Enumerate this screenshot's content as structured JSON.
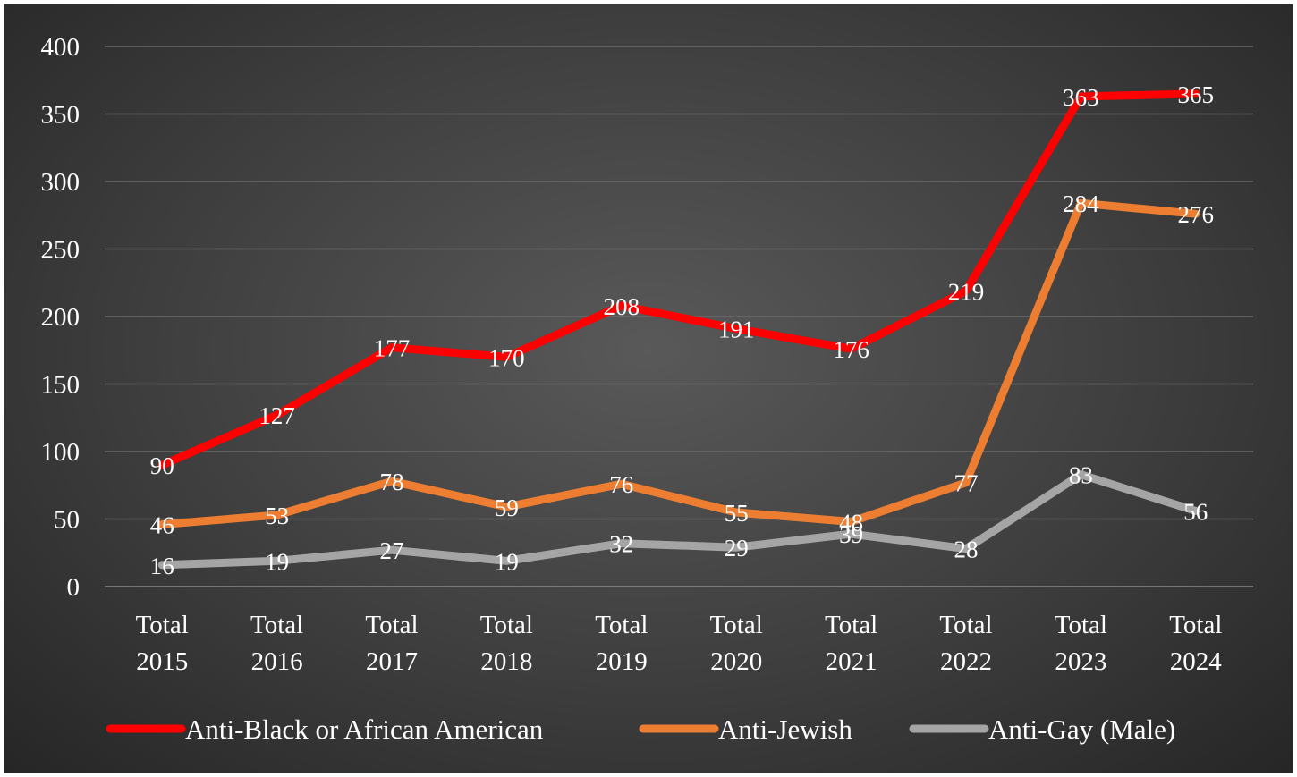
{
  "chart_data": {
    "type": "line",
    "title": "",
    "xlabel": "",
    "ylabel": "",
    "ylim": [
      0,
      400
    ],
    "yticks": [
      0,
      50,
      100,
      150,
      200,
      250,
      300,
      350,
      400
    ],
    "grid": true,
    "legend_position": "bottom",
    "categories": [
      [
        "Total",
        "2015"
      ],
      [
        "Total",
        "2016"
      ],
      [
        "Total",
        "2017"
      ],
      [
        "Total",
        "2018"
      ],
      [
        "Total",
        "2019"
      ],
      [
        "Total",
        "2020"
      ],
      [
        "Total",
        "2021"
      ],
      [
        "Total",
        "2022"
      ],
      [
        "Total",
        "2023"
      ],
      [
        "Total",
        "2024"
      ]
    ],
    "series": [
      {
        "name": "Anti-Black or African American",
        "color": "#ff0000",
        "values": [
          90,
          127,
          177,
          170,
          208,
          191,
          176,
          219,
          363,
          365
        ]
      },
      {
        "name": "Anti-Jewish",
        "color": "#ed7d31",
        "values": [
          46,
          53,
          78,
          59,
          76,
          55,
          48,
          77,
          284,
          276
        ]
      },
      {
        "name": "Anti-Gay (Male)",
        "color": "#a5a5a5",
        "values": [
          16,
          19,
          27,
          19,
          32,
          29,
          39,
          28,
          83,
          56
        ]
      }
    ]
  }
}
